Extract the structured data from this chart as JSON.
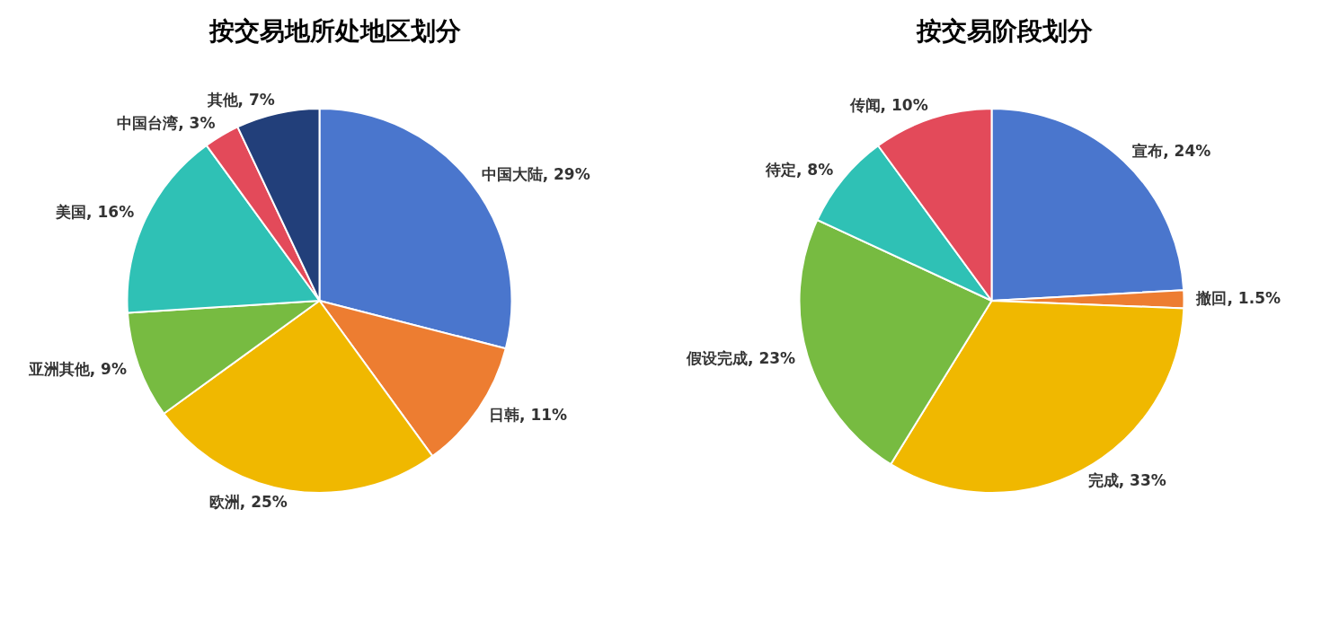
{
  "chart_data": [
    {
      "type": "pie",
      "title": "按交易地所处地区划分",
      "categories": [
        "中国大陆",
        "日韩",
        "欧洲",
        "亚洲其他",
        "美国",
        "中国台湾",
        "其他"
      ],
      "values": [
        29,
        11,
        25,
        9,
        16,
        3,
        7
      ],
      "value_labels": [
        "29%",
        "11%",
        "25%",
        "9%",
        "16%",
        "3%",
        "7%"
      ],
      "colors": [
        "#4a76cd",
        "#ed7d31",
        "#f0b800",
        "#77bb41",
        "#2fc1b5",
        "#e34a5a",
        "#223f7a"
      ]
    },
    {
      "type": "pie",
      "title": "按交易阶段划分",
      "categories": [
        "宣布",
        "撤回",
        "完成",
        "假设完成",
        "待定",
        "传闻"
      ],
      "values": [
        24,
        1.5,
        33,
        23,
        8,
        10
      ],
      "value_labels": [
        "24%",
        "1.5%",
        "33%",
        "23%",
        "8%",
        "10%"
      ],
      "colors": [
        "#4a76cd",
        "#ed7d31",
        "#f0b800",
        "#77bb41",
        "#2fc1b5",
        "#e34a5a"
      ]
    }
  ]
}
